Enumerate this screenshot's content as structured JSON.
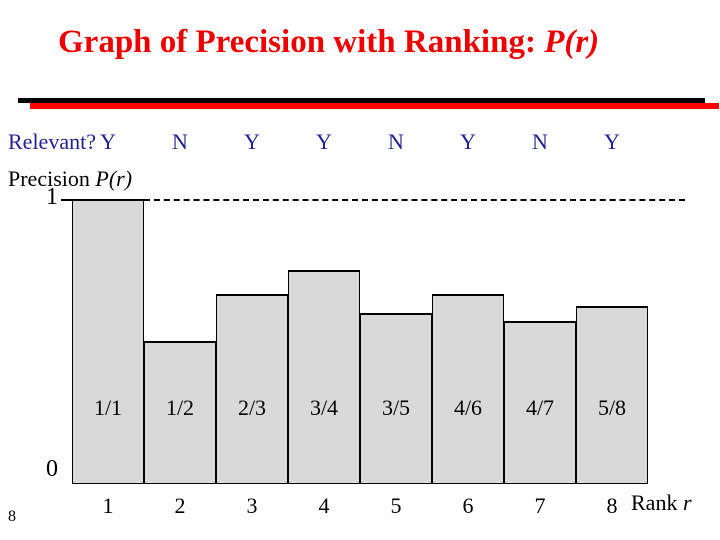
{
  "title": {
    "text": "Graph of Precision with Ranking: ",
    "math": "P(r)"
  },
  "relevant_row": {
    "label": "Relevant?",
    "marks": [
      "Y",
      "N",
      "Y",
      "Y",
      "N",
      "Y",
      "N",
      "Y"
    ]
  },
  "precision_label": {
    "text": "Precision ",
    "math": "P(r)"
  },
  "y_axis": {
    "top_label": "1",
    "bottom_label": "0"
  },
  "rank_axis": {
    "text": "Rank ",
    "math": "r"
  },
  "slide_number": "8",
  "colors": {
    "title_red": "#ee0000",
    "rule_black": "#000000",
    "rule_red": "#ff0000",
    "navy": "#22228f",
    "bar_fill": "#d9d9d9",
    "bar_border": "#000000"
  },
  "chart_data": {
    "type": "bar",
    "x": [
      1,
      2,
      3,
      4,
      5,
      6,
      7,
      8
    ],
    "bar_labels": [
      "1/1",
      "1/2",
      "2/3",
      "3/4",
      "3/5",
      "4/6",
      "4/7",
      "5/8"
    ],
    "values": [
      1.0,
      0.5,
      0.667,
      0.75,
      0.6,
      0.667,
      0.571,
      0.625
    ],
    "title": "Graph of Precision with Ranking: P(r)",
    "xlabel": "Rank r",
    "ylabel": "Precision P(r)",
    "ylim": [
      0,
      1
    ],
    "grid": false,
    "legend": false,
    "reference_line": {
      "y": 1.0,
      "style": "dashed"
    }
  }
}
